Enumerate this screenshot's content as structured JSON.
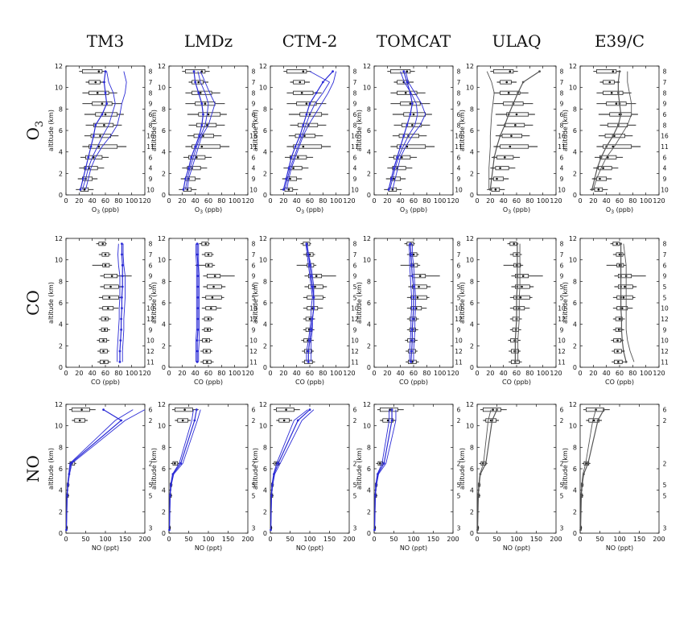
{
  "chart_data": {
    "type": "line",
    "columns": [
      "TM3",
      "LMDz",
      "CTM-2",
      "TOMCAT",
      "ULAQ",
      "E39/C"
    ],
    "row_labels": [
      "O3",
      "CO",
      "NO"
    ],
    "colors": {
      "model_blue": "#2b2bd6",
      "model_gray": "#555555",
      "obs": "#111111",
      "box_fill": "#f2f2f2"
    },
    "blue_models": [
      "TM3",
      "LMDz",
      "CTM-2",
      "TOMCAT"
    ],
    "altitudes_km": [
      0.5,
      1.5,
      2.5,
      3.5,
      4.5,
      5.5,
      6.5,
      7.5,
      8.5,
      9.5,
      10.5,
      11.5
    ],
    "rows": [
      {
        "species": "O3",
        "xlabel": "O3 (ppb)",
        "ylabel": "altitude (km)",
        "xlim": [
          0,
          120
        ],
        "ylim": [
          0,
          12
        ],
        "xticks": [
          0,
          20,
          40,
          60,
          80,
          100,
          120
        ],
        "yticks": [
          0,
          2,
          4,
          6,
          8,
          10,
          12
        ],
        "counts": [
          "10",
          "9",
          "4",
          "6",
          "11",
          "16",
          "8",
          "6",
          "9",
          "8",
          "7",
          "8"
        ],
        "obs": [
          {
            "alt": 0.5,
            "mean": 28,
            "q1": 22,
            "q3": 34,
            "min": 15,
            "max": 42
          },
          {
            "alt": 1.5,
            "mean": 30,
            "q1": 25,
            "q3": 40,
            "min": 18,
            "max": 48
          },
          {
            "alt": 2.5,
            "mean": 35,
            "q1": 28,
            "q3": 48,
            "min": 20,
            "max": 58
          },
          {
            "alt": 3.5,
            "mean": 42,
            "q1": 30,
            "q3": 55,
            "min": 22,
            "max": 65
          },
          {
            "alt": 4.5,
            "mean": 50,
            "q1": 35,
            "q3": 78,
            "min": 25,
            "max": 92
          },
          {
            "alt": 5.5,
            "mean": 52,
            "q1": 38,
            "q3": 68,
            "min": 28,
            "max": 80
          },
          {
            "alt": 6.5,
            "mean": 58,
            "q1": 42,
            "q3": 72,
            "min": 30,
            "max": 85
          },
          {
            "alt": 7.5,
            "mean": 60,
            "q1": 45,
            "q3": 78,
            "min": 28,
            "max": 88
          },
          {
            "alt": 8.5,
            "mean": 55,
            "q1": 40,
            "q3": 70,
            "min": 25,
            "max": 85
          },
          {
            "alt": 9.5,
            "mean": 48,
            "q1": 35,
            "q3": 65,
            "min": 25,
            "max": 78
          },
          {
            "alt": 10.5,
            "mean": 45,
            "q1": 35,
            "q3": 52,
            "min": 30,
            "max": 60
          },
          {
            "alt": 11.5,
            "mean": 50,
            "q1": 25,
            "q3": 55,
            "min": 20,
            "max": 62
          }
        ],
        "models": {
          "TM3": [
            [
              22,
              26,
              30,
              34,
              38,
              42,
              45,
              55,
              62,
              60,
              58,
              60
            ],
            [
              30,
              34,
              38,
              45,
              55,
              68,
              78,
              82,
              85,
              90,
              92,
              88
            ],
            [
              25,
              30,
              34,
              40,
              48,
              56,
              65,
              70,
              75,
              72,
              65,
              62
            ]
          ],
          "LMDz": [
            [
              22,
              25,
              30,
              34,
              40,
              46,
              50,
              52,
              50,
              45,
              40,
              38
            ],
            [
              28,
              30,
              35,
              40,
              45,
              50,
              60,
              65,
              70,
              62,
              55,
              48
            ],
            [
              25,
              28,
              32,
              37,
              42,
              48,
              55,
              58,
              60,
              55,
              48,
              44
            ]
          ],
          "CTM-2": [
            [
              20,
              24,
              28,
              32,
              38,
              45,
              50,
              55,
              60,
              70,
              80,
              95
            ],
            [
              25,
              28,
              32,
              38,
              44,
              50,
              58,
              68,
              78,
              88,
              96,
              100
            ],
            [
              22,
              26,
              30,
              36,
              42,
              48,
              54,
              60,
              68,
              80,
              90,
              60
            ]
          ],
          "TOMCAT": [
            [
              22,
              26,
              30,
              35,
              40,
              45,
              50,
              55,
              58,
              55,
              50,
              45
            ],
            [
              28,
              32,
              36,
              40,
              48,
              58,
              70,
              78,
              72,
              62,
              52,
              48
            ],
            [
              24,
              28,
              32,
              37,
              44,
              52,
              62,
              66,
              64,
              56,
              46,
              40
            ]
          ],
          "ULAQ": [
            [
              20,
              22,
              24,
              26,
              30,
              35,
              42,
              48,
              55,
              62,
              70,
              95
            ],
            [
              18,
              18,
              18,
              19,
              20,
              20,
              21,
              22,
              24,
              26,
              22,
              15
            ]
          ],
          "E39/C": [
            [
              18,
              22,
              26,
              32,
              40,
              50,
              58,
              62,
              60,
              58,
              58,
              60
            ],
            [
              20,
              25,
              32,
              40,
              52,
              62,
              72,
              78,
              78,
              75,
              72,
              72
            ]
          ]
        }
      },
      {
        "species": "CO",
        "xlabel": "CO (ppb)",
        "ylabel": "altitude (km)",
        "xlim": [
          0,
          120
        ],
        "ylim": [
          0,
          12
        ],
        "xticks": [
          0,
          20,
          40,
          60,
          80,
          100,
          120
        ],
        "yticks": [
          0,
          2,
          4,
          6,
          8,
          10,
          12
        ],
        "counts": [
          "11",
          "12",
          "10",
          "9",
          "12",
          "10",
          "5",
          "5",
          "9",
          "6",
          "7",
          "8"
        ],
        "obs": [
          {
            "alt": 0.5,
            "mean": 58,
            "q1": 52,
            "q3": 64,
            "min": 48,
            "max": 68
          },
          {
            "alt": 1.5,
            "mean": 57,
            "q1": 52,
            "q3": 63,
            "min": 48,
            "max": 66
          },
          {
            "alt": 2.5,
            "mean": 57,
            "q1": 51,
            "q3": 62,
            "min": 47,
            "max": 66
          },
          {
            "alt": 3.5,
            "mean": 59,
            "q1": 54,
            "q3": 63,
            "min": 50,
            "max": 67
          },
          {
            "alt": 4.5,
            "mean": 60,
            "q1": 54,
            "q3": 64,
            "min": 50,
            "max": 68
          },
          {
            "alt": 5.5,
            "mean": 64,
            "q1": 56,
            "q3": 72,
            "min": 50,
            "max": 80
          },
          {
            "alt": 6.5,
            "mean": 66,
            "q1": 56,
            "q3": 80,
            "min": 50,
            "max": 84
          },
          {
            "alt": 7.5,
            "mean": 68,
            "q1": 58,
            "q3": 80,
            "min": 52,
            "max": 86
          },
          {
            "alt": 8.5,
            "mean": 70,
            "q1": 58,
            "q3": 78,
            "min": 52,
            "max": 100
          },
          {
            "alt": 9.5,
            "mean": 60,
            "q1": 56,
            "q3": 66,
            "min": 40,
            "max": 70
          },
          {
            "alt": 10.5,
            "mean": 60,
            "q1": 55,
            "q3": 65,
            "min": 50,
            "max": 68
          },
          {
            "alt": 11.5,
            "mean": 56,
            "q1": 50,
            "q3": 60,
            "min": 46,
            "max": 62
          }
        ],
        "models": {
          "TM3": [
            [
              82,
              82,
              83,
              84,
              84,
              85,
              85,
              86,
              86,
              86,
              85,
              85
            ],
            [
              86,
              86,
              87,
              88,
              88,
              89,
              90,
              90,
              90,
              88,
              87,
              87
            ],
            [
              78,
              78,
              79,
              80,
              81,
              81,
              82,
              82,
              82,
              80,
              79,
              80
            ]
          ],
          "LMDz": [
            [
              43,
              43,
              43,
              44,
              44,
              44,
              44,
              44,
              44,
              44,
              43,
              43
            ],
            [
              45,
              45,
              46,
              46,
              46,
              46,
              46,
              46,
              46,
              45,
              45,
              45
            ],
            [
              41,
              41,
              41,
              42,
              42,
              42,
              42,
              42,
              42,
              42,
              41,
              41
            ]
          ],
          "CTM-2": [
            [
              58,
              58,
              60,
              62,
              64,
              66,
              66,
              64,
              62,
              60,
              58,
              55
            ],
            [
              62,
              62,
              62,
              64,
              64,
              66,
              66,
              66,
              64,
              62,
              58,
              56
            ],
            [
              55,
              55,
              58,
              60,
              62,
              62,
              64,
              62,
              60,
              58,
              56,
              54
            ]
          ],
          "TOMCAT": [
            [
              56,
              57,
              58,
              58,
              59,
              60,
              60,
              60,
              58,
              57,
              56,
              55
            ],
            [
              60,
              60,
              61,
              62,
              62,
              63,
              63,
              62,
              61,
              60,
              58,
              58
            ],
            [
              54,
              54,
              55,
              56,
              56,
              57,
              57,
              56,
              55,
              54,
              54,
              53
            ]
          ],
          "ULAQ": [
            [
              58,
              58,
              58,
              59,
              60,
              60,
              60,
              61,
              61,
              61,
              61,
              61
            ],
            [
              62,
              62,
              62,
              63,
              64,
              64,
              64,
              65,
              65,
              65,
              65,
              65
            ]
          ],
          "E39/C": [
            [
              70,
              66,
              64,
              63,
              63,
              62,
              62,
              62,
              62,
              62,
              62,
              62
            ],
            [
              82,
              76,
              72,
              70,
              70,
              70,
              70,
              70,
              70,
              70,
              68,
              66
            ]
          ]
        }
      },
      {
        "species": "NO",
        "xlabel": "NO (ppt)",
        "ylabel": "altitude (km)",
        "xlim": [
          0,
          200
        ],
        "ylim": [
          0,
          12
        ],
        "xticks": [
          0,
          50,
          100,
          150,
          200
        ],
        "yticks": [
          0,
          2,
          4,
          6,
          8,
          10,
          12
        ],
        "counts": [
          {
            "alt": 0.5,
            "n": "3"
          },
          {
            "alt": 3.5,
            "n": "5"
          },
          {
            "alt": 4.5,
            "n": "5"
          },
          {
            "alt": 6.5,
            "n": "2"
          },
          {
            "alt": 10.5,
            "n": "2"
          },
          {
            "alt": 11.5,
            "n": "6"
          }
        ],
        "obs": [
          {
            "alt": 0.5,
            "mean": 2,
            "q1": 1,
            "q3": 3,
            "min": 0,
            "max": 4
          },
          {
            "alt": 3.5,
            "mean": 4,
            "q1": 2,
            "q3": 6,
            "min": 1,
            "max": 8
          },
          {
            "alt": 4.5,
            "mean": 5,
            "q1": 3,
            "q3": 7,
            "min": 2,
            "max": 9
          },
          {
            "alt": 6.5,
            "mean": 15,
            "q1": 10,
            "q3": 22,
            "min": 5,
            "max": 26
          },
          {
            "alt": 10.5,
            "mean": 35,
            "q1": 22,
            "q3": 48,
            "min": 15,
            "max": 55
          },
          {
            "alt": 11.5,
            "mean": 40,
            "q1": 15,
            "q3": 60,
            "min": 8,
            "max": 75
          }
        ],
        "models": {
          "TM3": [
            [
              1,
              3,
              5,
              8,
              12,
              140,
              95
            ],
            [
              1,
              3,
              5,
              9,
              15,
              150,
              200
            ],
            [
              1,
              2,
              4,
              7,
              10,
              125,
              170
            ]
          ],
          "LMDz": [
            [
              1,
              3,
              5,
              10,
              30,
              65,
              70
            ],
            [
              1,
              3,
              6,
              12,
              35,
              72,
              80
            ],
            [
              1,
              2,
              4,
              9,
              26,
              58,
              62
            ]
          ],
          "CTM-2": [
            [
              1,
              3,
              5,
              9,
              20,
              70,
              100
            ],
            [
              1,
              3,
              6,
              11,
              25,
              80,
              110
            ],
            [
              1,
              2,
              4,
              8,
              16,
              60,
              95
            ]
          ],
          "TOMCAT": [
            [
              1,
              3,
              5,
              9,
              25,
              45,
              45
            ],
            [
              1,
              3,
              6,
              11,
              30,
              55,
              55
            ],
            [
              1,
              2,
              4,
              8,
              20,
              38,
              38
            ]
          ],
          "ULAQ": [
            [
              1,
              3,
              5,
              8,
              22,
              38,
              50
            ],
            [
              1,
              2,
              4,
              7,
              16,
              28,
              35
            ]
          ],
          "E39/C": [
            [
              1,
              3,
              5,
              9,
              20,
              45,
              60
            ],
            [
              1,
              2,
              4,
              7,
              14,
              32,
              40
            ]
          ]
        },
        "model_alts": [
          0.3,
          3.5,
          4.5,
          5.5,
          6.5,
          10.5,
          11.5
        ]
      }
    ]
  }
}
